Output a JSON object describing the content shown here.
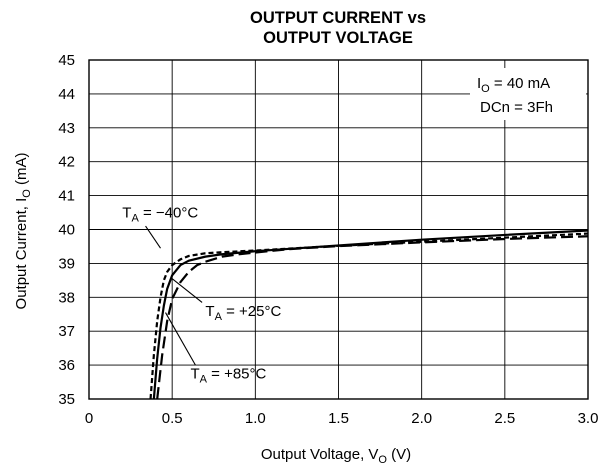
{
  "chart_data": {
    "type": "line",
    "title": [
      "OUTPUT CURRENT vs",
      "OUTPUT VOLTAGE"
    ],
    "xlabel": {
      "main": "Output Voltage, V",
      "sub": "O",
      "unit": " (V)"
    },
    "ylabel": {
      "main": "Output Current, I",
      "sub": "O",
      "unit": " (mA)"
    },
    "xlim": [
      0,
      3.0
    ],
    "ylim": [
      35,
      45
    ],
    "x_ticks": [
      0,
      0.5,
      1.0,
      1.5,
      2.0,
      2.5,
      3.0
    ],
    "x_tick_labels": [
      "0",
      "0.5",
      "1.0",
      "1.5",
      "2.0",
      "2.5",
      "3.0"
    ],
    "y_ticks": [
      35,
      36,
      37,
      38,
      39,
      40,
      41,
      42,
      43,
      44,
      45
    ],
    "y_tick_labels": [
      "35",
      "36",
      "37",
      "38",
      "39",
      "40",
      "41",
      "42",
      "43",
      "44",
      "45"
    ],
    "grid": true,
    "conditions": [
      {
        "main": "I",
        "sub": "O",
        "rest": " = 40 mA"
      },
      {
        "main": "DCn = 3Fh",
        "sub": "",
        "rest": ""
      }
    ],
    "series": [
      {
        "name": "T_A = −40°C",
        "style": "short-dash",
        "x": [
          0.37,
          0.39,
          0.41,
          0.43,
          0.45,
          0.47,
          0.5,
          0.55,
          0.6,
          0.7,
          0.8,
          1.0,
          1.5,
          2.0,
          2.5,
          3.0
        ],
        "y": [
          35.0,
          36.3,
          37.3,
          38.0,
          38.5,
          38.75,
          38.95,
          39.12,
          39.22,
          39.3,
          39.33,
          39.38,
          39.52,
          39.64,
          39.76,
          39.88
        ]
      },
      {
        "name": "T_A = +25°C",
        "style": "solid",
        "x": [
          0.39,
          0.41,
          0.43,
          0.45,
          0.47,
          0.5,
          0.55,
          0.6,
          0.7,
          0.8,
          1.0,
          1.5,
          2.0,
          2.5,
          3.0
        ],
        "y": [
          35.0,
          36.2,
          37.1,
          37.75,
          38.25,
          38.65,
          38.95,
          39.08,
          39.2,
          39.27,
          39.36,
          39.53,
          39.7,
          39.84,
          39.97
        ]
      },
      {
        "name": "T_A = +85°C",
        "style": "long-dash",
        "x": [
          0.41,
          0.44,
          0.47,
          0.5,
          0.55,
          0.6,
          0.65,
          0.7,
          0.8,
          0.9,
          1.0,
          1.2,
          1.5,
          2.0,
          2.5,
          3.0
        ],
        "y": [
          35.0,
          36.3,
          37.3,
          37.95,
          38.45,
          38.75,
          38.95,
          39.05,
          39.2,
          39.27,
          39.32,
          39.42,
          39.51,
          39.62,
          39.72,
          39.8
        ]
      }
    ],
    "annotations": [
      {
        "main": "T",
        "sub": "A",
        "rest": " = −40°C",
        "series": 0
      },
      {
        "main": "T",
        "sub": "A",
        "rest": " = +25°C",
        "series": 1
      },
      {
        "main": "T",
        "sub": "A",
        "rest": " = +85°C",
        "series": 2
      }
    ]
  }
}
